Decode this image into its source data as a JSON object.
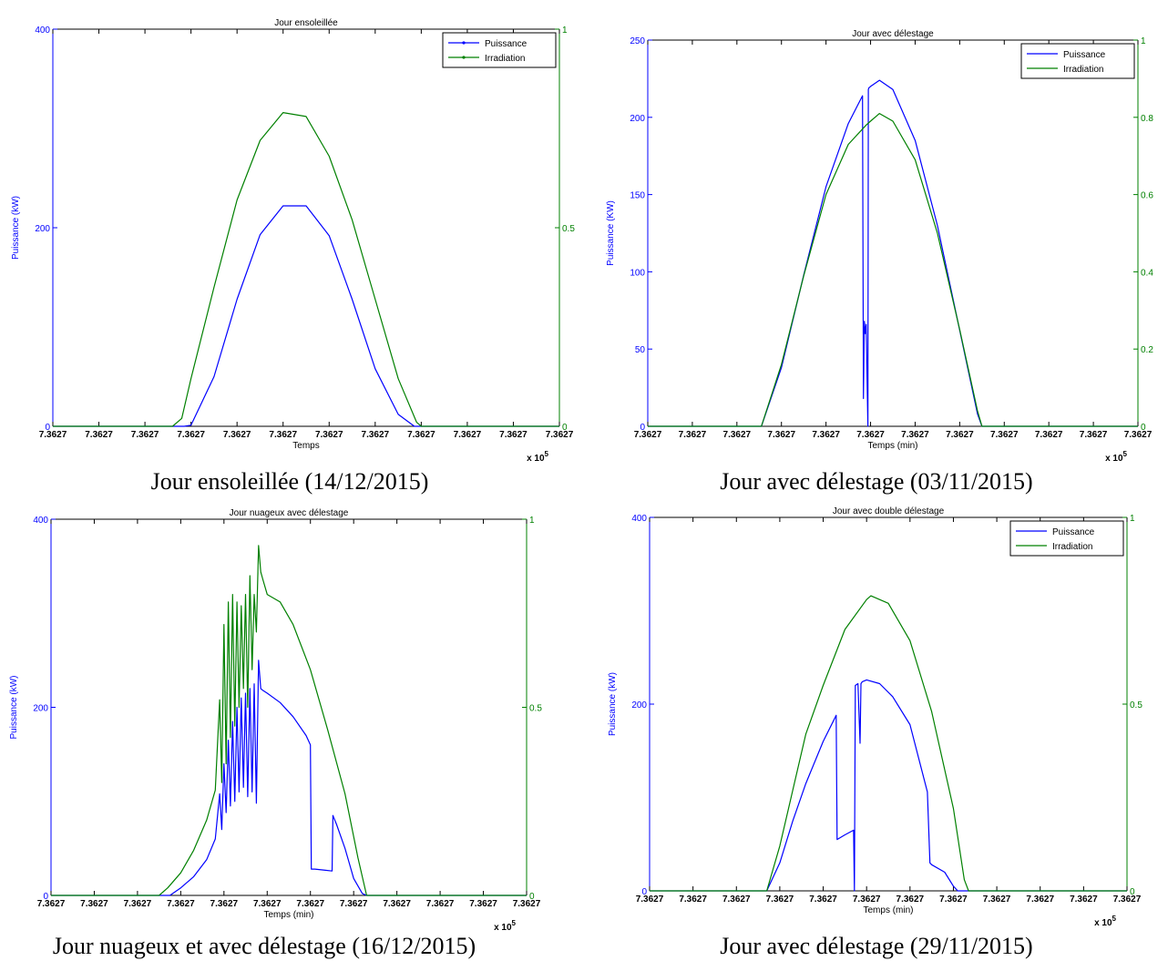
{
  "chart_data": [
    {
      "type": "line",
      "title": "Jour ensoleillée",
      "caption": "Jour ensoleillée (14/12/2015)",
      "xlabel": "Temps",
      "ylabel_left": "Puissance (kW)",
      "x_multiplier": "x 10",
      "x_multiplier_exp": "5",
      "x_ticks": [
        "7.3627",
        "7.3627",
        "7.3627",
        "7.3627",
        "7.3627",
        "7.3627",
        "7.3627",
        "7.3627",
        "7.3627",
        "7.3627",
        "7.3627",
        "7.3627"
      ],
      "x_range": [
        0,
        11
      ],
      "y_left": {
        "range": [
          0,
          400
        ],
        "ticks": [
          0,
          200,
          400
        ],
        "labels": [
          "0",
          "200",
          "400"
        ],
        "color": "#0000ff"
      },
      "y_right": {
        "range": [
          0,
          1
        ],
        "ticks": [
          0,
          0.5,
          1
        ],
        "labels": [
          "0",
          "0.5",
          "1"
        ],
        "color": "#008000"
      },
      "legend": {
        "position": "top-right",
        "entries": [
          "Puissance",
          "Irradiation"
        ],
        "markers": true
      },
      "series": [
        {
          "name": "Puissance",
          "axis": "left",
          "color": "#0000ff",
          "x": [
            0,
            2.85,
            3.0,
            3.5,
            4.0,
            4.5,
            5.0,
            5.5,
            6.0,
            6.5,
            7.0,
            7.5,
            7.85,
            8.0,
            11
          ],
          "y": [
            0,
            0,
            1,
            50,
            128,
            193,
            222,
            222,
            192,
            128,
            58,
            12,
            0,
            0,
            0
          ]
        },
        {
          "name": "Irradiation",
          "axis": "right",
          "color": "#008000",
          "x": [
            0,
            2.6,
            2.8,
            3.0,
            3.5,
            4.0,
            4.5,
            5.0,
            5.5,
            6.0,
            6.5,
            7.0,
            7.5,
            7.9,
            8.0,
            11
          ],
          "y": [
            0,
            0,
            0.02,
            0.12,
            0.35,
            0.57,
            0.72,
            0.79,
            0.78,
            0.68,
            0.52,
            0.32,
            0.12,
            0.01,
            0,
            0
          ]
        }
      ]
    },
    {
      "type": "line",
      "title": "Jour avec délestage",
      "caption": "Jour avec délestage (03/11/2015)",
      "xlabel": "Temps (min)",
      "ylabel_left": "Puissance (KW)",
      "x_multiplier": "x 10",
      "x_multiplier_exp": "5",
      "x_ticks": [
        "7.3627",
        "7.3627",
        "7.3627",
        "7.3627",
        "7.3627",
        "7.3627",
        "7.3627",
        "7.3627",
        "7.3627",
        "7.3627",
        "7.3627",
        "7.3627"
      ],
      "x_range": [
        0,
        11
      ],
      "y_left": {
        "range": [
          0,
          250
        ],
        "ticks": [
          0,
          50,
          100,
          150,
          200,
          250
        ],
        "labels": [
          "0",
          "50",
          "100",
          "150",
          "200",
          "250"
        ],
        "color": "#0000ff"
      },
      "y_right": {
        "range": [
          0,
          1
        ],
        "ticks": [
          0,
          0.2,
          0.4,
          0.6,
          0.8,
          1
        ],
        "labels": [
          "0",
          "0.2",
          "0.4",
          "0.6",
          "0.8",
          "1"
        ],
        "color": "#008000"
      },
      "legend": {
        "position": "top-right",
        "entries": [
          "Puissance",
          "Irradiation"
        ],
        "markers": false
      },
      "series": [
        {
          "name": "Puissance",
          "axis": "left",
          "color": "#0000ff",
          "x": [
            0,
            2.55,
            3.0,
            3.5,
            4.0,
            4.5,
            4.82,
            4.84,
            4.86,
            4.88,
            4.9,
            4.94,
            4.95,
            4.96,
            5.0,
            5.2,
            5.5,
            6.0,
            6.5,
            7.0,
            7.4,
            7.5,
            11
          ],
          "y": [
            0,
            0,
            38,
            98,
            155,
            196,
            214,
            18,
            68,
            60,
            66,
            0,
            218,
            219,
            220,
            224,
            218,
            185,
            130,
            62,
            8,
            0,
            0
          ]
        },
        {
          "name": "Irradiation",
          "axis": "right",
          "color": "#008000",
          "x": [
            0,
            2.55,
            3.0,
            3.5,
            4.0,
            4.5,
            4.9,
            5.0,
            5.2,
            5.5,
            6.0,
            6.5,
            7.0,
            7.4,
            7.5,
            11
          ],
          "y": [
            0,
            0,
            0.16,
            0.39,
            0.6,
            0.73,
            0.78,
            0.79,
            0.81,
            0.79,
            0.69,
            0.5,
            0.25,
            0.04,
            0,
            0
          ]
        }
      ]
    },
    {
      "type": "line",
      "title": "Jour nuageux avec délestage",
      "caption": "Jour nuageux et avec délestage (16/12/2015)",
      "xlabel": "Temps (min)",
      "ylabel_left": "Puissance (kW)",
      "x_multiplier": "x 10",
      "x_multiplier_exp": "5",
      "x_ticks": [
        "7.3627",
        "7.3627",
        "7.3627",
        "7.3627",
        "7.3627",
        "7.3627",
        "7.3627",
        "7.3627",
        "7.3627",
        "7.3627",
        "7.3627",
        "7.3627"
      ],
      "x_range": [
        0,
        11
      ],
      "y_left": {
        "range": [
          0,
          400
        ],
        "ticks": [
          0,
          200,
          400
        ],
        "labels": [
          "0",
          "200",
          "400"
        ],
        "color": "#0000ff"
      },
      "y_right": {
        "range": [
          0,
          1
        ],
        "ticks": [
          0,
          0.5,
          1
        ],
        "labels": [
          "0",
          "0.5",
          "1"
        ],
        "color": "#008000"
      },
      "legend": null,
      "series": [
        {
          "name": "Puissance",
          "axis": "left",
          "color": "#0000ff",
          "x": [
            0,
            2.75,
            3.0,
            3.3,
            3.6,
            3.8,
            3.9,
            3.95,
            4.0,
            4.05,
            4.1,
            4.15,
            4.2,
            4.25,
            4.3,
            4.35,
            4.4,
            4.45,
            4.5,
            4.55,
            4.6,
            4.65,
            4.7,
            4.75,
            4.8,
            4.85,
            4.9,
            5.0,
            5.3,
            5.6,
            5.9,
            6.0,
            6.02,
            6.1,
            6.3,
            6.5,
            6.52,
            6.6,
            6.8,
            7.0,
            7.2,
            7.3,
            11
          ],
          "y": [
            0,
            0,
            8,
            20,
            38,
            60,
            108,
            70,
            140,
            88,
            165,
            95,
            185,
            100,
            200,
            110,
            210,
            115,
            215,
            105,
            220,
            110,
            225,
            98,
            250,
            220,
            218,
            215,
            205,
            190,
            170,
            160,
            28,
            28,
            27,
            26,
            85,
            76,
            50,
            18,
            2,
            0,
            0
          ]
        },
        {
          "name": "Irradiation",
          "axis": "right",
          "color": "#008000",
          "x": [
            0,
            2.5,
            2.7,
            3.0,
            3.3,
            3.6,
            3.8,
            3.9,
            3.95,
            4.0,
            4.05,
            4.1,
            4.15,
            4.2,
            4.25,
            4.3,
            4.35,
            4.4,
            4.45,
            4.5,
            4.55,
            4.6,
            4.65,
            4.7,
            4.75,
            4.8,
            4.85,
            4.9,
            5.0,
            5.3,
            5.6,
            6.0,
            6.4,
            6.8,
            7.1,
            7.3,
            11
          ],
          "y": [
            0,
            0,
            0.02,
            0.06,
            0.12,
            0.2,
            0.28,
            0.52,
            0.3,
            0.72,
            0.35,
            0.78,
            0.42,
            0.8,
            0.45,
            0.78,
            0.5,
            0.77,
            0.55,
            0.8,
            0.5,
            0.85,
            0.6,
            0.8,
            0.7,
            0.93,
            0.86,
            0.84,
            0.8,
            0.78,
            0.72,
            0.6,
            0.44,
            0.27,
            0.1,
            0,
            0
          ]
        }
      ]
    },
    {
      "type": "line",
      "title": "Jour avec double délestage",
      "caption": "Jour avec délestage (29/11/2015)",
      "xlabel": "Temps (min)",
      "ylabel_left": "Puissance (kW)",
      "x_multiplier": "x 10",
      "x_multiplier_exp": "5",
      "x_ticks": [
        "7.3627",
        "7.3627",
        "7.3627",
        "7.3627",
        "7.3627",
        "7.3627",
        "7.3627",
        "7.3627",
        "7.3627",
        "7.3627",
        "7.3627",
        "7.3627"
      ],
      "x_range": [
        0,
        11
      ],
      "y_left": {
        "range": [
          0,
          400
        ],
        "ticks": [
          0,
          200,
          400
        ],
        "labels": [
          "0",
          "200",
          "400"
        ],
        "color": "#0000ff"
      },
      "y_right": {
        "range": [
          0,
          1
        ],
        "ticks": [
          0,
          0.5,
          1
        ],
        "labels": [
          "0",
          "0.5",
          "1"
        ],
        "color": "#008000"
      },
      "legend": {
        "position": "top-right",
        "entries": [
          "Puissance",
          "Irradiation"
        ],
        "markers": false
      },
      "series": [
        {
          "name": "Puissance",
          "axis": "left",
          "color": "#0000ff",
          "x": [
            0,
            2.7,
            3.0,
            3.3,
            3.6,
            4.0,
            4.3,
            4.32,
            4.5,
            4.7,
            4.72,
            4.74,
            4.8,
            4.85,
            4.87,
            4.9,
            5.0,
            5.3,
            5.6,
            6.0,
            6.4,
            6.46,
            6.5,
            6.8,
            7.0,
            7.1,
            11
          ],
          "y": [
            0,
            0,
            30,
            75,
            115,
            160,
            188,
            55,
            60,
            65,
            0,
            220,
            222,
            158,
            222,
            224,
            226,
            222,
            208,
            178,
            106,
            30,
            28,
            20,
            5,
            0,
            0
          ]
        },
        {
          "name": "Irradiation",
          "axis": "right",
          "color": "#008000",
          "x": [
            0,
            2.7,
            3.0,
            3.3,
            3.6,
            4.0,
            4.5,
            5.0,
            5.1,
            5.5,
            6.0,
            6.5,
            7.0,
            7.25,
            7.35,
            11
          ],
          "y": [
            0,
            0,
            0.12,
            0.27,
            0.42,
            0.55,
            0.7,
            0.78,
            0.79,
            0.77,
            0.67,
            0.48,
            0.22,
            0.03,
            0,
            0
          ]
        }
      ]
    }
  ]
}
